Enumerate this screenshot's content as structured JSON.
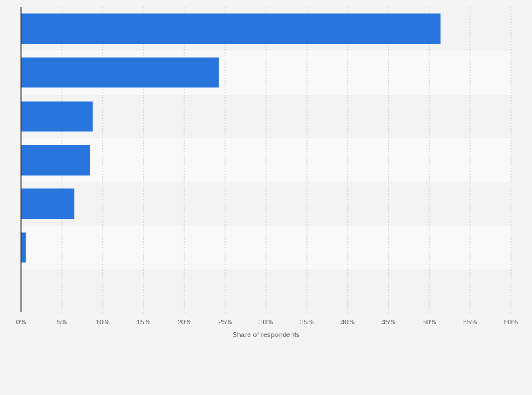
{
  "colors": {
    "background": "#f4f4f4",
    "band_light": "#f9f9f9",
    "band_dark": "#f3f3f3",
    "bar": "#2876dd",
    "grid": "#d9d9d9",
    "axis": "#333333",
    "text": "#666666"
  },
  "chart_data": {
    "type": "bar",
    "orientation": "horizontal",
    "categories": [
      "",
      "",
      "",
      "",
      "",
      "",
      ""
    ],
    "values": [
      51.4,
      24.2,
      8.8,
      8.4,
      6.5,
      0.6,
      null
    ],
    "xlabel": "Share of respondents",
    "ylabel": "",
    "xlim": [
      0,
      60
    ],
    "ticks": [
      "0%",
      "5%",
      "10%",
      "15%",
      "20%",
      "25%",
      "30%",
      "35%",
      "40%",
      "45%",
      "50%",
      "55%",
      "60%"
    ],
    "grid": true,
    "legend": "none"
  }
}
